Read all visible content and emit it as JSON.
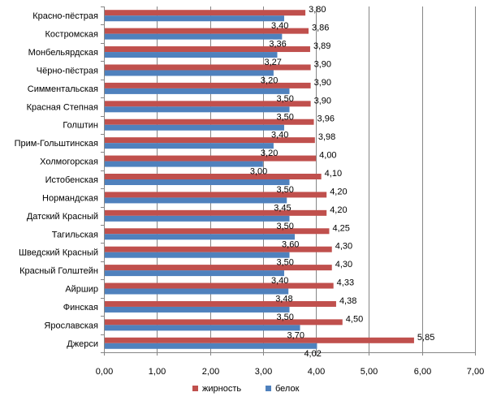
{
  "chart_data": {
    "type": "bar",
    "orientation": "horizontal",
    "categories": [
      "Красно-пёстрая",
      "Костромская",
      "Монбельярдская",
      "Чёрно-пёстрая",
      "Симментальская",
      "Красная Степная",
      "Голштин",
      "Прим-Гольштинская",
      "Холмогорская",
      "Истобенская",
      "Нормандская",
      "Датский Красный",
      "Тагильская",
      "Шведский Красный",
      "Красный Голштейн",
      "Айршир",
      "Финская",
      "Ярославская",
      "Джерси"
    ],
    "series": [
      {
        "name": "жирность",
        "color": "#c0504d",
        "values": [
          3.8,
          3.86,
          3.89,
          3.9,
          3.9,
          3.9,
          3.96,
          3.98,
          4.0,
          4.1,
          4.2,
          4.2,
          4.25,
          4.3,
          4.3,
          4.33,
          4.38,
          4.5,
          5.85
        ],
        "labels": [
          "3,80",
          "3,86",
          "3,89",
          "3,90",
          "3,90",
          "3,90",
          "3,96",
          "3,98",
          "4,00",
          "4,10",
          "4,20",
          "4,20",
          "4,25",
          "4,30",
          "4,30",
          "4,33",
          "4,38",
          "4,50",
          "5,85"
        ]
      },
      {
        "name": "белок",
        "color": "#4f81bd",
        "values": [
          3.4,
          3.36,
          3.27,
          3.2,
          3.5,
          3.5,
          3.4,
          3.2,
          3.0,
          3.5,
          3.45,
          3.5,
          3.6,
          3.5,
          3.4,
          3.48,
          3.5,
          3.7,
          4.02
        ],
        "labels": [
          "3,40",
          "3,36",
          "3,27",
          "3,20",
          "3,50",
          "3,50",
          "3,40",
          "3,20",
          "3,00",
          "3,50",
          "3,45",
          "3,50",
          "3,60",
          "3,50",
          "3,40",
          "3,48",
          "3,50",
          "3,70",
          "4,02"
        ]
      }
    ],
    "xlim": [
      0,
      7
    ],
    "xticks": [
      0,
      1,
      2,
      3,
      4,
      5,
      6,
      7
    ],
    "xtick_labels": [
      "0,00",
      "1,00",
      "2,00",
      "3,00",
      "4,00",
      "5,00",
      "6,00",
      "7,00"
    ],
    "grid": "vertical",
    "legend": "bottom",
    "title": "",
    "xlabel": "",
    "ylabel": ""
  }
}
